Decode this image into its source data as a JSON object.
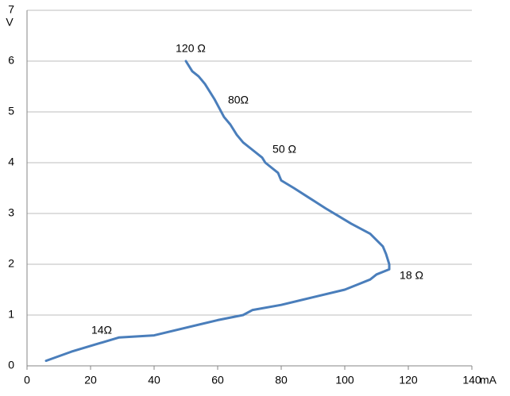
{
  "chart_data": {
    "type": "line",
    "x_label": "mA",
    "y_label": "V",
    "annotations": [
      "120 Ω",
      "80Ω",
      "50 Ω",
      "18 Ω",
      "14Ω"
    ],
    "xlim": [
      0,
      140
    ],
    "xticks": [
      0,
      20,
      40,
      60,
      80,
      100,
      120,
      140
    ],
    "ylim": [
      0,
      7
    ],
    "yticks": [
      0,
      1,
      2,
      3,
      4,
      5,
      6,
      7
    ],
    "grid": true,
    "series": [
      {
        "color": "#4a7ebb",
        "x": [
          6,
          14,
          21.5,
          29,
          40,
          60,
          68,
          71,
          80,
          90,
          100,
          104,
          108,
          110,
          114,
          114,
          113,
          112,
          108,
          102,
          98,
          94,
          89,
          84,
          80,
          79,
          75,
          74,
          71,
          68,
          66,
          64,
          62,
          59,
          56,
          54,
          52,
          50
        ],
        "values": [
          0.1,
          0.28,
          0.42,
          0.56,
          0.6,
          0.9,
          1.0,
          1.1,
          1.2,
          1.35,
          1.5,
          1.6,
          1.7,
          1.8,
          1.9,
          2.0,
          2.2,
          2.35,
          2.6,
          2.8,
          2.95,
          3.1,
          3.3,
          3.5,
          3.65,
          3.8,
          4.0,
          4.1,
          4.25,
          4.4,
          4.55,
          4.75,
          4.9,
          5.25,
          5.55,
          5.7,
          5.8,
          6.0
        ]
      }
    ]
  }
}
